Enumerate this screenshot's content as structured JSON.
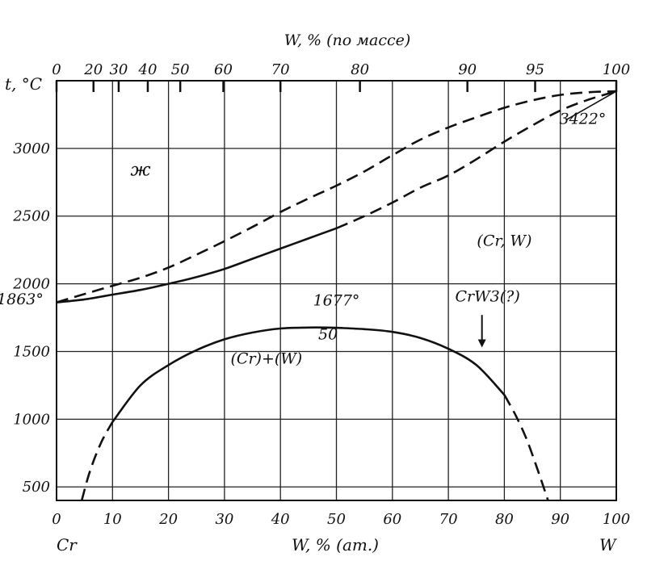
{
  "chart_data": {
    "type": "line",
    "title": "",
    "top_axis_label": "W, % (по массе)",
    "bottom_axis_label": "W, % (ат.)",
    "y_axis_label": "t, °C",
    "left_end_label": "Cr",
    "right_end_label": "W",
    "xlim": [
      0,
      100
    ],
    "ylim": [
      400,
      3500
    ],
    "grid": true,
    "x_ticks": [
      "0",
      "10",
      "20",
      "30",
      "40",
      "50",
      "60",
      "70",
      "80",
      "90",
      "100"
    ],
    "x_tick_values": [
      0,
      10,
      20,
      30,
      40,
      50,
      60,
      70,
      80,
      90,
      100
    ],
    "top_ticks": [
      {
        "label": "0",
        "at": 0
      },
      {
        "label": "20",
        "at": 6.6
      },
      {
        "label": "30",
        "at": 11.1
      },
      {
        "label": "40",
        "at": 16.3
      },
      {
        "label": "50",
        "at": 22.1
      },
      {
        "label": "60",
        "at": 29.8
      },
      {
        "label": "70",
        "at": 40.0
      },
      {
        "label": "80",
        "at": 54.2
      },
      {
        "label": "90",
        "at": 73.4
      },
      {
        "label": "95",
        "at": 85.5
      },
      {
        "label": "100",
        "at": 100
      }
    ],
    "y_ticks": [
      {
        "label": "500",
        "value": 500
      },
      {
        "label": "1000",
        "value": 1000
      },
      {
        "label": "1500",
        "value": 1500
      },
      {
        "label": "2000",
        "value": 2000
      },
      {
        "label": "2500",
        "value": 2500
      },
      {
        "label": "3000",
        "value": 3000
      }
    ],
    "series": [
      {
        "style": "dashed",
        "x": [
          0,
          5,
          10,
          15,
          20,
          25,
          30,
          35,
          40,
          45,
          50,
          55,
          60,
          65,
          70,
          75,
          80,
          85,
          90,
          95,
          100
        ],
        "y": [
          1863,
          1925,
          1985,
          2045,
          2120,
          2215,
          2315,
          2420,
          2530,
          2630,
          2725,
          2830,
          2950,
          3065,
          3155,
          3230,
          3300,
          3355,
          3395,
          3415,
          3422
        ]
      },
      {
        "style": "solid",
        "x": [
          0,
          5,
          10,
          15,
          20,
          25,
          30,
          35,
          40,
          45,
          50
        ],
        "y": [
          1863,
          1885,
          1920,
          1955,
          2000,
          2050,
          2110,
          2185,
          2260,
          2335,
          2410
        ]
      },
      {
        "style": "dashed",
        "x": [
          50,
          55,
          60,
          65,
          70,
          75,
          80,
          85,
          90,
          95,
          100
        ],
        "y": [
          2410,
          2500,
          2600,
          2710,
          2800,
          2920,
          3050,
          3170,
          3280,
          3360,
          3422
        ]
      },
      {
        "style": "solid",
        "x": [
          10,
          15,
          20,
          25,
          30,
          35,
          40,
          45,
          48,
          50,
          55,
          60,
          65,
          70,
          75,
          80
        ],
        "y": [
          980,
          1250,
          1400,
          1510,
          1590,
          1640,
          1670,
          1677,
          1677,
          1675,
          1665,
          1645,
          1600,
          1520,
          1400,
          1180
        ]
      },
      {
        "style": "dashed",
        "x": [
          4.5,
          6,
          8,
          10
        ],
        "y": [
          400,
          620,
          830,
          980
        ]
      },
      {
        "style": "dashed",
        "x": [
          80,
          82,
          84,
          86,
          87.8
        ],
        "y": [
          1180,
          1030,
          850,
          620,
          400
        ]
      }
    ],
    "annotations": [
      {
        "text": "ж",
        "x": 15,
        "y": 2800
      },
      {
        "text": "3422°",
        "x": 94,
        "y": 3180
      },
      {
        "text": "(Cr, W)",
        "x": 80,
        "y": 2280
      },
      {
        "text": "1677°",
        "x": 50,
        "y": 1840
      },
      {
        "text": "50",
        "x": 48.5,
        "y": 1590
      },
      {
        "text": "CrW3(?)",
        "x": 77,
        "y": 1870
      },
      {
        "text": "(Cr)+(W)",
        "x": 37.5,
        "y": 1410
      },
      {
        "text": "1863°",
        "x": -6.5,
        "y": 1850
      }
    ],
    "markers": {
      "arrow_crw3_x": 76,
      "arrow_crw3_from_y": 1770,
      "arrow_crw3_to_y": 1530,
      "pointer_3422_from": [
        91,
        3210
      ],
      "pointer_3422_to": [
        100,
        3422
      ]
    }
  }
}
